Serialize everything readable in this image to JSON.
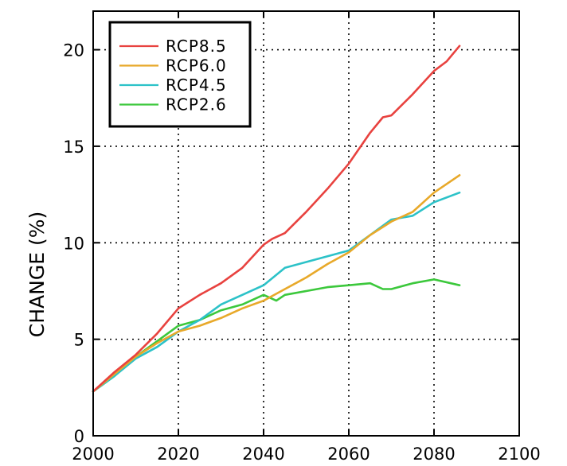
{
  "chart_data": {
    "type": "line",
    "title": "",
    "xlabel": "",
    "ylabel": "CHANGE (%)",
    "xlim": [
      2000,
      2100
    ],
    "ylim": [
      0,
      22
    ],
    "xticks": [
      "2000",
      "2020",
      "2040",
      "2060",
      "2080",
      "2100"
    ],
    "yticks": [
      "0",
      "5",
      "10",
      "15",
      "20"
    ],
    "grid": true,
    "legend_position": "top-left",
    "series": [
      {
        "name": "RCP8.5",
        "color": "#e8423f",
        "x": [
          2000,
          2005,
          2010,
          2015,
          2020,
          2025,
          2030,
          2035,
          2040,
          2042,
          2045,
          2050,
          2055,
          2060,
          2065,
          2068,
          2070,
          2075,
          2080,
          2083,
          2086
        ],
        "y": [
          2.3,
          3.3,
          4.2,
          5.3,
          6.6,
          7.3,
          7.9,
          8.7,
          9.9,
          10.2,
          10.5,
          11.6,
          12.8,
          14.1,
          15.7,
          16.5,
          16.6,
          17.7,
          18.9,
          19.4,
          20.2
        ]
      },
      {
        "name": "RCP6.0",
        "color": "#e8a92a",
        "x": [
          2000,
          2005,
          2010,
          2015,
          2020,
          2025,
          2030,
          2035,
          2040,
          2045,
          2050,
          2055,
          2060,
          2065,
          2070,
          2075,
          2080,
          2086
        ],
        "y": [
          2.3,
          3.2,
          4.1,
          4.8,
          5.4,
          5.7,
          6.1,
          6.6,
          7.0,
          7.6,
          8.2,
          8.9,
          9.5,
          10.4,
          11.1,
          11.6,
          12.6,
          13.5
        ]
      },
      {
        "name": "RCP4.5",
        "color": "#2cc2c8",
        "x": [
          2000,
          2005,
          2010,
          2015,
          2020,
          2025,
          2030,
          2035,
          2040,
          2045,
          2050,
          2055,
          2060,
          2065,
          2070,
          2075,
          2080,
          2086
        ],
        "y": [
          2.3,
          3.1,
          4.0,
          4.6,
          5.4,
          6.0,
          6.8,
          7.3,
          7.8,
          8.7,
          9.0,
          9.3,
          9.6,
          10.4,
          11.2,
          11.4,
          12.1,
          12.6
        ]
      },
      {
        "name": "RCP2.6",
        "color": "#3cc83c",
        "x": [
          2000,
          2005,
          2010,
          2015,
          2020,
          2025,
          2030,
          2035,
          2040,
          2043,
          2045,
          2050,
          2055,
          2060,
          2065,
          2068,
          2070,
          2075,
          2080,
          2086
        ],
        "y": [
          2.3,
          3.1,
          4.1,
          4.9,
          5.7,
          6.0,
          6.5,
          6.8,
          7.3,
          7.0,
          7.3,
          7.5,
          7.7,
          7.8,
          7.9,
          7.6,
          7.6,
          7.9,
          8.1,
          7.8
        ]
      }
    ]
  }
}
